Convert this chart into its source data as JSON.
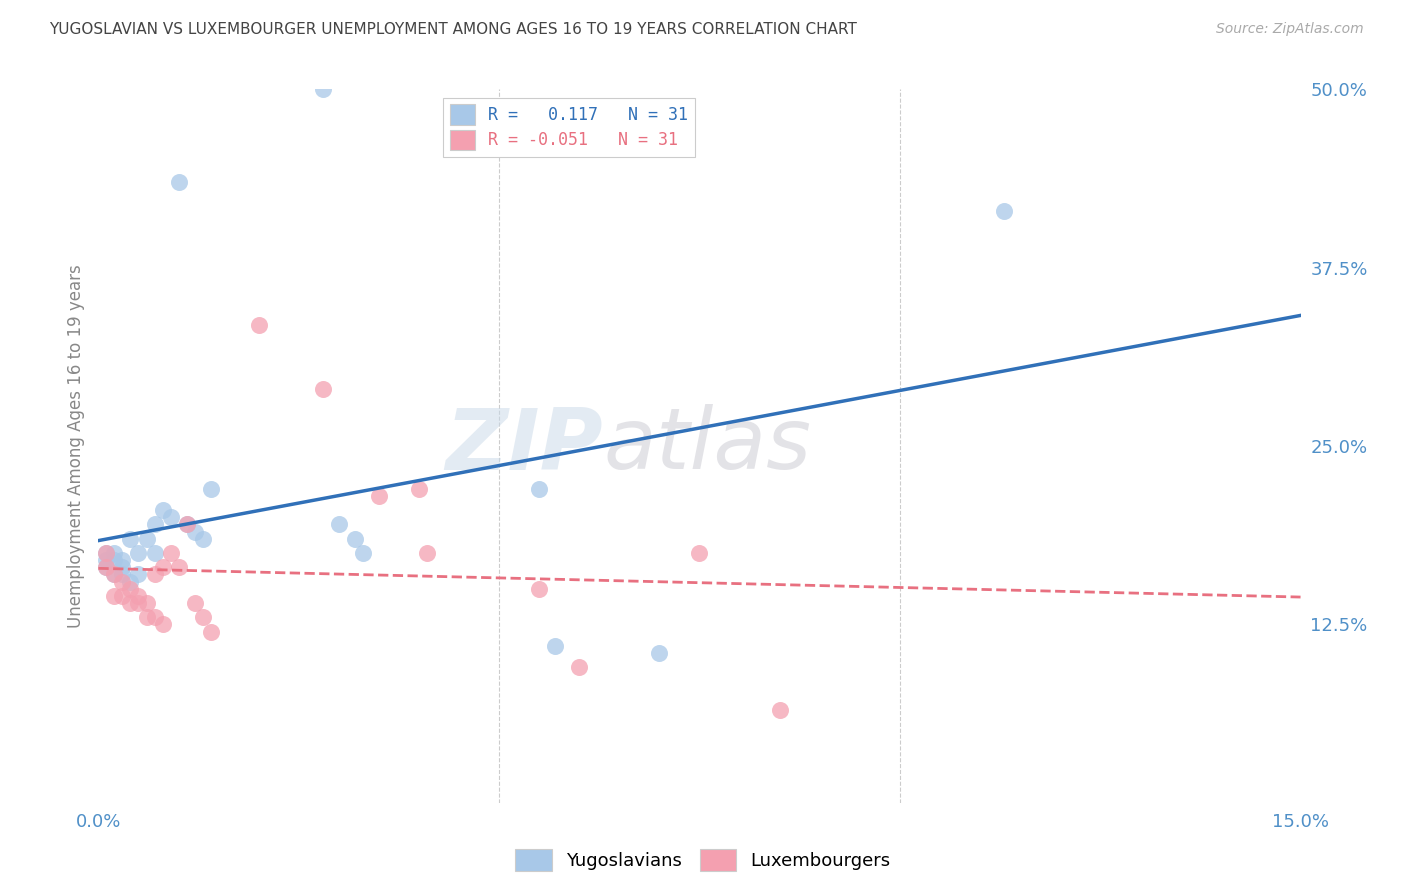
{
  "title": "YUGOSLAVIAN VS LUXEMBOURGER UNEMPLOYMENT AMONG AGES 16 TO 19 YEARS CORRELATION CHART",
  "source": "Source: ZipAtlas.com",
  "ylabel": "Unemployment Among Ages 16 to 19 years",
  "xlim": [
    0.0,
    0.15
  ],
  "ylim": [
    0.0,
    0.5
  ],
  "watermark_zip": "ZIP",
  "watermark_atlas": "atlas",
  "legend_r_blue": "0.117",
  "legend_r_pink": "-0.051",
  "legend_n": "31",
  "blue_color": "#a8c8e8",
  "pink_color": "#f4a0b0",
  "blue_line_color": "#3070b8",
  "pink_line_color": "#e87080",
  "grid_color": "#cccccc",
  "axis_label_color": "#5090c8",
  "ylabel_color": "#888888",
  "title_color": "#444444",
  "source_color": "#aaaaaa",
  "yugoslavian_x": [
    0.001,
    0.001,
    0.001,
    0.002,
    0.002,
    0.002,
    0.003,
    0.003,
    0.003,
    0.004,
    0.004,
    0.005,
    0.005,
    0.006,
    0.007,
    0.007,
    0.008,
    0.009,
    0.01,
    0.011,
    0.012,
    0.013,
    0.014,
    0.03,
    0.032,
    0.033,
    0.055,
    0.057,
    0.07,
    0.113,
    0.028
  ],
  "yugoslavian_y": [
    0.175,
    0.17,
    0.165,
    0.17,
    0.16,
    0.175,
    0.165,
    0.16,
    0.17,
    0.155,
    0.185,
    0.16,
    0.175,
    0.185,
    0.175,
    0.195,
    0.205,
    0.2,
    0.435,
    0.195,
    0.19,
    0.185,
    0.22,
    0.195,
    0.185,
    0.175,
    0.22,
    0.11,
    0.105,
    0.415,
    0.5
  ],
  "luxembourger_x": [
    0.001,
    0.001,
    0.002,
    0.002,
    0.003,
    0.003,
    0.004,
    0.004,
    0.005,
    0.005,
    0.006,
    0.006,
    0.007,
    0.007,
    0.008,
    0.008,
    0.009,
    0.01,
    0.011,
    0.012,
    0.013,
    0.014,
    0.02,
    0.028,
    0.035,
    0.04,
    0.041,
    0.055,
    0.06,
    0.075,
    0.085
  ],
  "luxembourger_y": [
    0.165,
    0.175,
    0.16,
    0.145,
    0.145,
    0.155,
    0.14,
    0.15,
    0.14,
    0.145,
    0.13,
    0.14,
    0.13,
    0.16,
    0.125,
    0.165,
    0.175,
    0.165,
    0.195,
    0.14,
    0.13,
    0.12,
    0.335,
    0.29,
    0.215,
    0.22,
    0.175,
    0.15,
    0.095,
    0.175,
    0.065
  ]
}
